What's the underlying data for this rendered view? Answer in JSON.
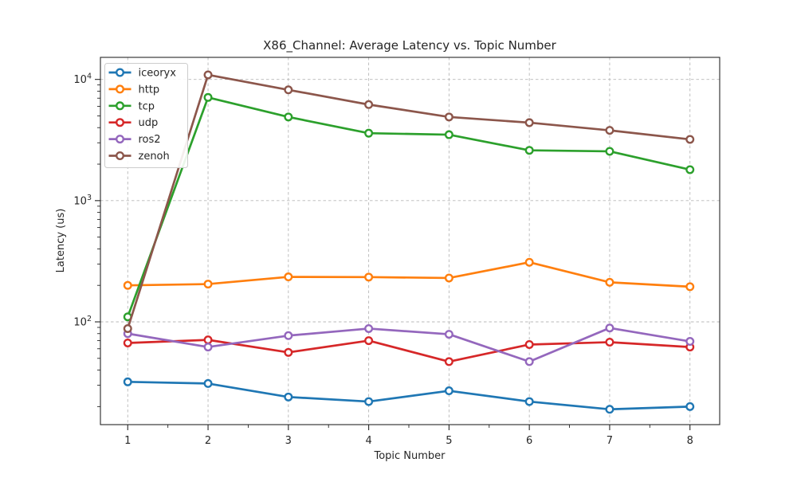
{
  "figure": {
    "title": "X86_Channel: Average Latency vs. Topic Number",
    "xlabel": "Topic Number",
    "ylabel": "Latency (us)"
  },
  "chart_data": {
    "type": "line",
    "title": "X86_Channel: Average Latency vs. Topic Number",
    "xlabel": "Topic Number",
    "ylabel": "Latency (us)",
    "yscale": "log",
    "grid": true,
    "legend_position": "upper left",
    "marker": "o",
    "x": [
      1,
      2,
      3,
      4,
      5,
      6,
      7,
      8
    ],
    "xticks": [
      1,
      2,
      3,
      4,
      5,
      6,
      7,
      8
    ],
    "yticks": [
      100,
      1000,
      10000
    ],
    "ytick_labels": [
      "10^2",
      "10^3",
      "10^4"
    ],
    "xlim": [
      0.66,
      8.37
    ],
    "ylim": [
      14.2,
      15200
    ],
    "series": [
      {
        "name": "iceoryx",
        "color": "#1f77b4",
        "values": [
          32,
          31,
          24,
          22,
          27,
          22,
          19,
          20
        ]
      },
      {
        "name": "http",
        "color": "#ff7f0e",
        "values": [
          200,
          205,
          235,
          234,
          230,
          310,
          212,
          195
        ]
      },
      {
        "name": "tcp",
        "color": "#2ca02c",
        "values": [
          110,
          7100,
          4900,
          3600,
          3500,
          2600,
          2550,
          1800
        ]
      },
      {
        "name": "udp",
        "color": "#d62728",
        "values": [
          67,
          71,
          56,
          70,
          47,
          65,
          68,
          62
        ]
      },
      {
        "name": "ros2",
        "color": "#9467bd",
        "values": [
          80,
          62,
          77,
          88,
          79,
          47,
          89,
          69
        ]
      },
      {
        "name": "zenoh",
        "color": "#8c564b",
        "values": [
          88,
          10900,
          8200,
          6200,
          4900,
          4400,
          3800,
          3200
        ]
      }
    ],
    "style": {
      "grid_color": "#b8b8b8",
      "spine_color": "#262626",
      "marker_face": "#ffffff",
      "legend_border": "#cccccc",
      "legend_bg": "#ffffff"
    }
  }
}
